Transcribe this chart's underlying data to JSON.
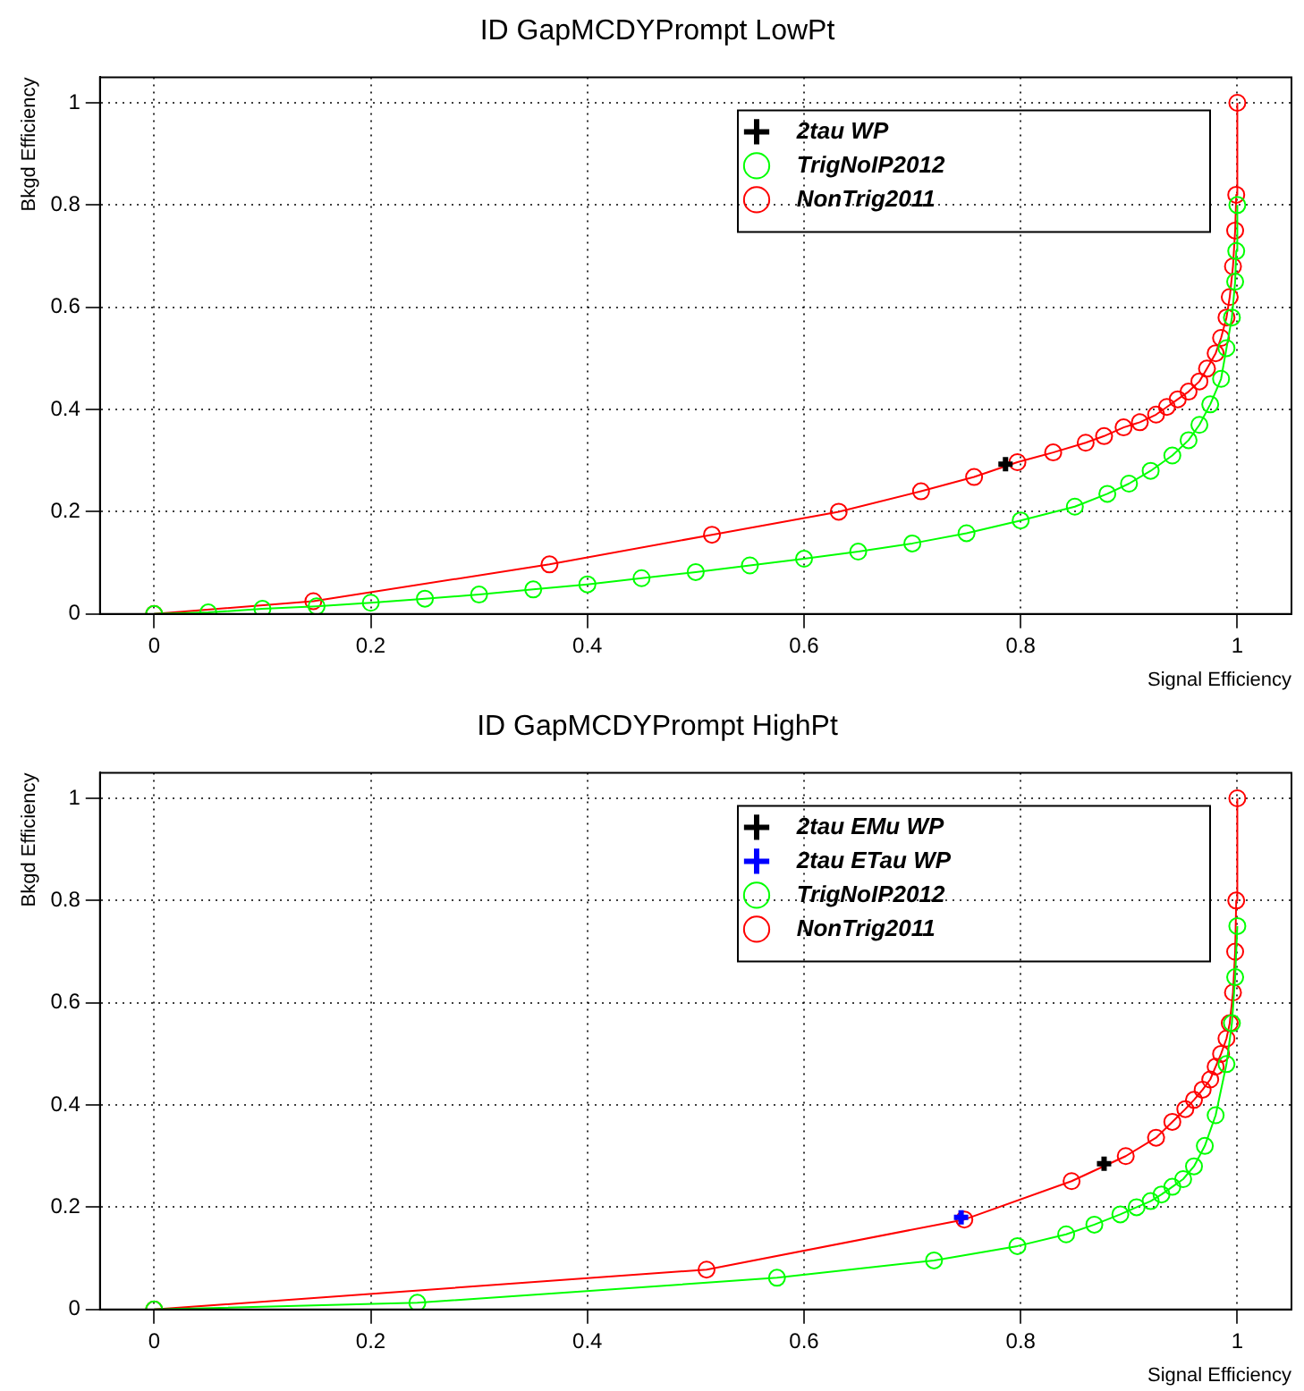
{
  "chart_data": [
    {
      "type": "line",
      "title": "ID GapMCDYPrompt LowPt",
      "xlabel": "Signal Efficiency",
      "ylabel": "Bkgd Efficiency",
      "xlim": [
        -0.05,
        1.05
      ],
      "ylim": [
        0,
        1.05
      ],
      "xticks": [
        0,
        0.2,
        0.4,
        0.6,
        0.8,
        1
      ],
      "yticks": [
        0,
        0.2,
        0.4,
        0.6,
        0.8,
        1
      ],
      "grid": true,
      "legend": "top right",
      "series": [
        {
          "name": "TrigNoIP2012",
          "color": "#00ff00",
          "marker": "circle",
          "x": [
            0,
            0.05,
            0.1,
            0.15,
            0.2,
            0.25,
            0.3,
            0.35,
            0.4,
            0.45,
            0.5,
            0.55,
            0.6,
            0.65,
            0.7,
            0.75,
            0.8,
            0.85,
            0.88,
            0.9,
            0.92,
            0.94,
            0.955,
            0.965,
            0.975,
            0.985,
            0.99,
            0.995,
            0.998,
            0.999,
            1
          ],
          "values": [
            0,
            0.003,
            0.01,
            0.015,
            0.022,
            0.03,
            0.038,
            0.048,
            0.058,
            0.07,
            0.082,
            0.095,
            0.108,
            0.122,
            0.138,
            0.158,
            0.183,
            0.21,
            0.235,
            0.255,
            0.28,
            0.31,
            0.34,
            0.37,
            0.41,
            0.46,
            0.52,
            0.58,
            0.65,
            0.71,
            0.8
          ]
        },
        {
          "name": "NonTrig2011",
          "color": "#ff0000",
          "marker": "circle",
          "x": [
            0,
            0.147,
            0.365,
            0.515,
            0.632,
            0.708,
            0.757,
            0.797,
            0.83,
            0.86,
            0.877,
            0.895,
            0.91,
            0.925,
            0.935,
            0.945,
            0.955,
            0.965,
            0.972,
            0.98,
            0.985,
            0.99,
            0.993,
            0.996,
            0.998,
            0.999,
            1
          ],
          "values": [
            0,
            0.025,
            0.097,
            0.155,
            0.2,
            0.24,
            0.268,
            0.297,
            0.316,
            0.335,
            0.348,
            0.365,
            0.375,
            0.39,
            0.405,
            0.42,
            0.435,
            0.455,
            0.48,
            0.51,
            0.54,
            0.58,
            0.62,
            0.68,
            0.75,
            0.82,
            1
          ]
        },
        {
          "name": "2tau WP",
          "type": "scatter",
          "color": "#000000",
          "marker": "cross",
          "x": [
            0.786
          ],
          "values": [
            0.293
          ]
        }
      ]
    },
    {
      "type": "line",
      "title": "ID GapMCDYPrompt HighPt",
      "xlabel": "Signal Efficiency",
      "ylabel": "Bkgd Efficiency",
      "xlim": [
        -0.05,
        1.05
      ],
      "ylim": [
        0,
        1.05
      ],
      "xticks": [
        0,
        0.2,
        0.4,
        0.6,
        0.8,
        1
      ],
      "yticks": [
        0,
        0.2,
        0.4,
        0.6,
        0.8,
        1
      ],
      "grid": true,
      "legend": "top right",
      "series": [
        {
          "name": "TrigNoIP2012",
          "color": "#00ff00",
          "marker": "circle",
          "x": [
            0,
            0.243,
            0.575,
            0.72,
            0.797,
            0.842,
            0.868,
            0.892,
            0.907,
            0.92,
            0.93,
            0.94,
            0.95,
            0.96,
            0.97,
            0.98,
            0.99,
            0.995,
            0.998,
            1
          ],
          "values": [
            0,
            0.013,
            0.062,
            0.096,
            0.124,
            0.147,
            0.166,
            0.186,
            0.2,
            0.212,
            0.225,
            0.24,
            0.255,
            0.28,
            0.32,
            0.38,
            0.48,
            0.56,
            0.65,
            0.75
          ]
        },
        {
          "name": "NonTrig2011",
          "color": "#ff0000",
          "marker": "circle",
          "x": [
            0,
            0.51,
            0.748,
            0.847,
            0.897,
            0.925,
            0.94,
            0.952,
            0.96,
            0.968,
            0.975,
            0.98,
            0.985,
            0.99,
            0.993,
            0.996,
            0.998,
            0.999,
            1
          ],
          "values": [
            0,
            0.078,
            0.176,
            0.251,
            0.3,
            0.336,
            0.367,
            0.392,
            0.41,
            0.43,
            0.45,
            0.475,
            0.5,
            0.53,
            0.56,
            0.62,
            0.7,
            0.8,
            1
          ]
        },
        {
          "name": "2tau EMu WP",
          "type": "scatter",
          "color": "#000000",
          "marker": "cross",
          "x": [
            0.877
          ],
          "values": [
            0.285
          ]
        },
        {
          "name": "2tau ETau WP",
          "type": "scatter",
          "color": "#0000ff",
          "marker": "cross",
          "x": [
            0.745
          ],
          "values": [
            0.18
          ]
        }
      ]
    }
  ]
}
